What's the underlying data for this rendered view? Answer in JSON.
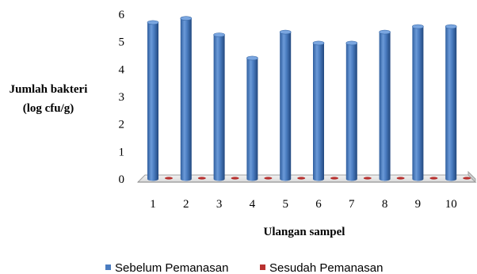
{
  "chart_data": {
    "type": "bar",
    "categories": [
      "1",
      "2",
      "3",
      "4",
      "5",
      "6",
      "7",
      "8",
      "9",
      "10"
    ],
    "series": [
      {
        "name": "Sebelum Pemanasan",
        "values": [
          5.7,
          5.85,
          5.25,
          4.4,
          5.35,
          4.95,
          4.95,
          5.35,
          5.55,
          5.55
        ],
        "color": "#4a7cc0"
      },
      {
        "name": "Sesudah Pemanasan",
        "values": [
          0,
          0,
          0,
          0,
          0,
          0,
          0,
          0,
          0,
          0
        ],
        "color": "#b8312f"
      }
    ],
    "ylabel_line1": "Jumlah bakteri",
    "ylabel_line2": "(log cfu/g)",
    "xlabel": "Ulangan sampel",
    "ylim": [
      0,
      6
    ],
    "yticks": [
      "0",
      "1",
      "2",
      "3",
      "4",
      "5",
      "6"
    ],
    "grid": false,
    "legend_position": "bottom",
    "style": "3d-cylinder"
  }
}
